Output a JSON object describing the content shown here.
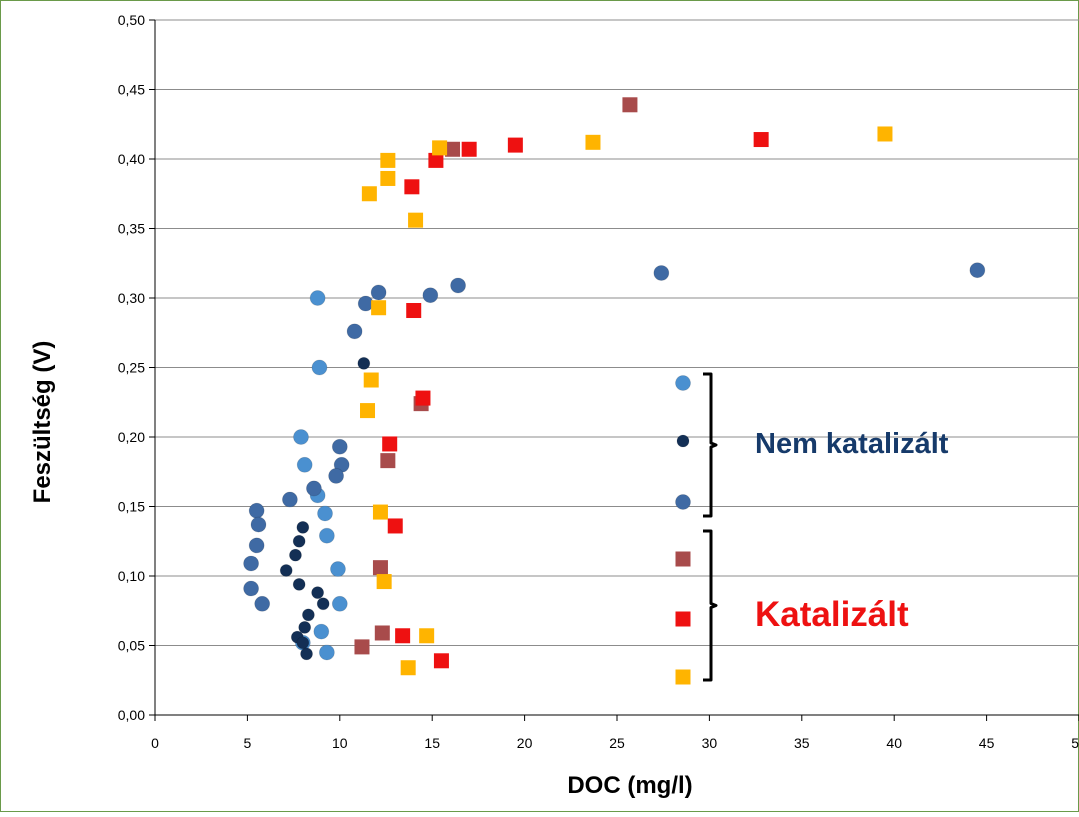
{
  "chart_data": {
    "type": "scatter",
    "xlabel": "DOC (mg/l)",
    "ylabel": "Feszültség (V)",
    "xlim": [
      0,
      50
    ],
    "ylim": [
      0,
      0.5
    ],
    "x_ticks": [
      "0",
      "5",
      "10",
      "15",
      "20",
      "25",
      "30",
      "35",
      "40",
      "45",
      "50"
    ],
    "y_ticks": [
      "0,00",
      "0,05",
      "0,10",
      "0,15",
      "0,20",
      "0,25",
      "0,30",
      "0,35",
      "0,40",
      "0,45",
      "0,50"
    ],
    "grid": "horizontal",
    "legend_placement": "right",
    "group_labels": {
      "nem": "Nem katalizált",
      "kat": "Katalizált"
    },
    "series": [
      {
        "marker": "circle",
        "size": "large",
        "color": "#4a90d0",
        "points": [
          [
            8.8,
            0.3
          ],
          [
            8.9,
            0.25
          ],
          [
            7.9,
            0.2
          ],
          [
            8.1,
            0.18
          ],
          [
            8.8,
            0.158
          ],
          [
            9.2,
            0.145
          ],
          [
            9.3,
            0.129
          ],
          [
            9.9,
            0.105
          ],
          [
            10.0,
            0.08
          ],
          [
            9.0,
            0.06
          ],
          [
            9.3,
            0.045
          ],
          [
            8.0,
            0.052
          ]
        ]
      },
      {
        "marker": "circle",
        "size": "small",
        "color": "#132f55",
        "points": [
          [
            11.3,
            0.253
          ],
          [
            8.0,
            0.135
          ],
          [
            7.8,
            0.125
          ],
          [
            7.6,
            0.115
          ],
          [
            7.1,
            0.104
          ],
          [
            7.8,
            0.094
          ],
          [
            8.8,
            0.088
          ],
          [
            9.1,
            0.08
          ],
          [
            8.3,
            0.072
          ],
          [
            8.1,
            0.063
          ],
          [
            7.7,
            0.056
          ],
          [
            8.0,
            0.052
          ],
          [
            8.2,
            0.044
          ]
        ]
      },
      {
        "marker": "circle",
        "size": "large",
        "color": "#3f6aa4",
        "points": [
          [
            12.1,
            0.304
          ],
          [
            11.4,
            0.296
          ],
          [
            14.9,
            0.302
          ],
          [
            16.4,
            0.309
          ],
          [
            27.4,
            0.318
          ],
          [
            44.5,
            0.32
          ],
          [
            10.8,
            0.276
          ],
          [
            10.0,
            0.193
          ],
          [
            10.1,
            0.18
          ],
          [
            9.8,
            0.172
          ],
          [
            8.6,
            0.163
          ],
          [
            7.3,
            0.155
          ],
          [
            5.5,
            0.147
          ],
          [
            5.6,
            0.137
          ],
          [
            5.5,
            0.122
          ],
          [
            5.2,
            0.109
          ],
          [
            5.2,
            0.091
          ],
          [
            5.8,
            0.08
          ]
        ]
      },
      {
        "marker": "square",
        "color": "#a84b4b",
        "points": [
          [
            25.7,
            0.439
          ],
          [
            16.1,
            0.407
          ],
          [
            14.4,
            0.224
          ],
          [
            12.6,
            0.183
          ],
          [
            12.2,
            0.106
          ],
          [
            12.3,
            0.059
          ],
          [
            11.2,
            0.049
          ]
        ]
      },
      {
        "marker": "square",
        "color": "#ee1111",
        "points": [
          [
            15.2,
            0.399
          ],
          [
            17.0,
            0.407
          ],
          [
            19.5,
            0.41
          ],
          [
            32.8,
            0.414
          ],
          [
            13.9,
            0.38
          ],
          [
            14.0,
            0.291
          ],
          [
            14.5,
            0.228
          ],
          [
            12.7,
            0.195
          ],
          [
            13.0,
            0.136
          ],
          [
            13.4,
            0.057
          ],
          [
            15.5,
            0.039
          ]
        ]
      },
      {
        "marker": "square",
        "color": "#ffb400",
        "points": [
          [
            15.4,
            0.408
          ],
          [
            23.7,
            0.412
          ],
          [
            39.5,
            0.418
          ],
          [
            12.6,
            0.399
          ],
          [
            12.6,
            0.386
          ],
          [
            11.6,
            0.375
          ],
          [
            14.1,
            0.356
          ],
          [
            12.1,
            0.293
          ],
          [
            11.7,
            0.241
          ],
          [
            11.5,
            0.219
          ],
          [
            12.2,
            0.146
          ],
          [
            12.4,
            0.096
          ],
          [
            14.7,
            0.057
          ],
          [
            13.7,
            0.034
          ]
        ]
      }
    ]
  }
}
